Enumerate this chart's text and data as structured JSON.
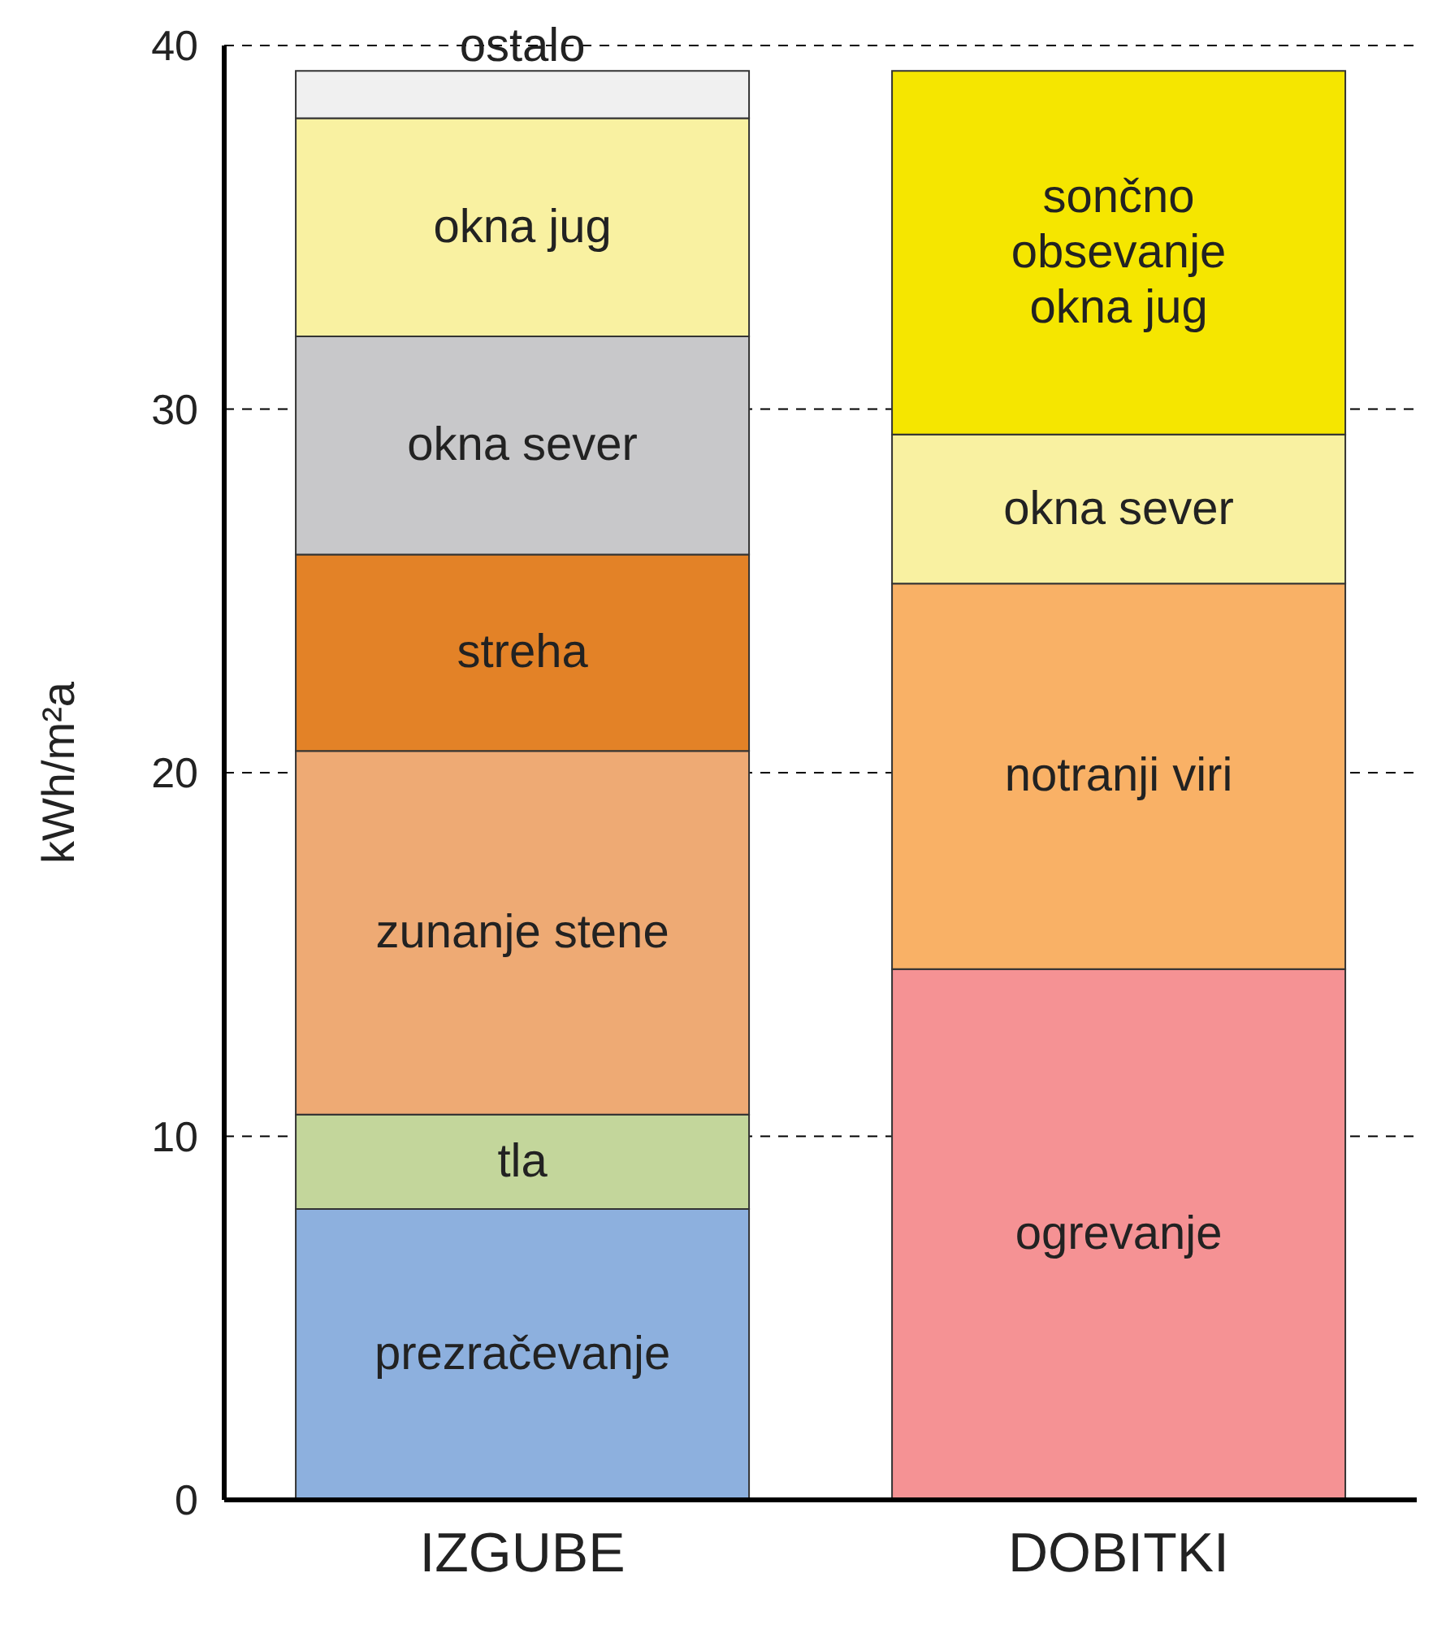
{
  "chart_data": {
    "type": "bar",
    "stacked": true,
    "ylabel": "kWh/m²a",
    "categories": [
      "IZGUBE",
      "DOBITKI"
    ],
    "series": [
      {
        "name": "prezračevanje",
        "color": "#8db0de",
        "values": [
          8.0,
          null
        ]
      },
      {
        "name": "tla",
        "color": "#c3d69b",
        "values": [
          2.6,
          null
        ]
      },
      {
        "name": "zunanje stene",
        "color": "#eeaa74",
        "values": [
          10.0,
          null
        ]
      },
      {
        "name": "streha",
        "color": "#e38227",
        "values": [
          5.4,
          null
        ]
      },
      {
        "name": "okna sever",
        "color": "#c8c8ca",
        "values": [
          6.0,
          null
        ]
      },
      {
        "name": "okna jug",
        "color": "#f9f1a1",
        "values": [
          6.0,
          null
        ]
      },
      {
        "name": "ostalo",
        "color": "#f0f0f0",
        "values": [
          1.3,
          null
        ]
      },
      {
        "name": "ogrevanje",
        "color": "#f59294",
        "values": [
          null,
          14.6
        ]
      },
      {
        "name": "notranji viri",
        "color": "#f9b166",
        "values": [
          null,
          10.6
        ]
      },
      {
        "name": "okna sever",
        "color": "#f9f1a1",
        "values": [
          null,
          4.1
        ]
      },
      {
        "name": "sončno obsevanje okna jug",
        "color": "#f5e600",
        "values": [
          null,
          10.0
        ]
      }
    ],
    "ylim": [
      0,
      40
    ],
    "yticks": [
      0,
      10,
      20,
      30,
      40
    ],
    "grid": "y"
  }
}
